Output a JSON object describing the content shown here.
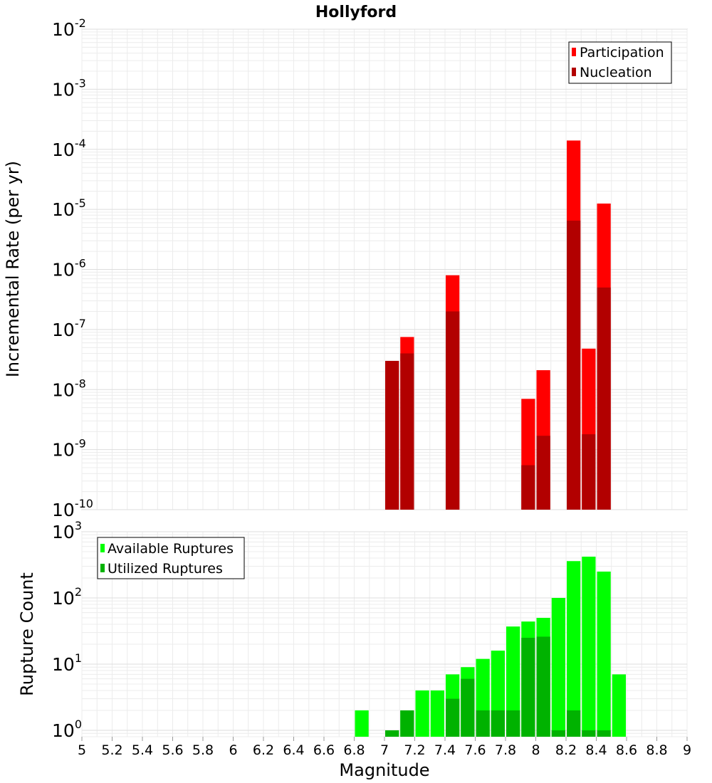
{
  "chart_data": [
    {
      "type": "bar",
      "title": "Hollyford",
      "ylabel": "Incremental Rate (per yr)",
      "xlabel": "",
      "yscale": "log",
      "xlim": [
        5,
        9
      ],
      "ylim": [
        1e-10,
        0.01
      ],
      "yticks": [
        {
          "base": "10",
          "exp": "-10"
        },
        {
          "base": "10",
          "exp": "-9"
        },
        {
          "base": "10",
          "exp": "-8"
        },
        {
          "base": "10",
          "exp": "-7"
        },
        {
          "base": "10",
          "exp": "-6"
        },
        {
          "base": "10",
          "exp": "-5"
        },
        {
          "base": "10",
          "exp": "-4"
        },
        {
          "base": "10",
          "exp": "-3"
        },
        {
          "base": "10",
          "exp": "-2"
        }
      ],
      "legend_position": "top-right",
      "series": [
        {
          "name": "Participation",
          "color": "#ff0000",
          "x": [
            7.05,
            7.15,
            7.45,
            7.95,
            8.05,
            8.25,
            8.35,
            8.45
          ],
          "values": [
            3e-08,
            7.5e-08,
            8e-07,
            7e-09,
            2.1e-08,
            0.00014,
            4.8e-08,
            1.25e-05
          ]
        },
        {
          "name": "Nucleation",
          "color": "#b20000",
          "x": [
            7.05,
            7.15,
            7.45,
            7.95,
            8.05,
            8.25,
            8.35,
            8.45
          ],
          "values": [
            3e-08,
            4e-08,
            2e-07,
            5.5e-10,
            1.7e-09,
            6.5e-06,
            1.8e-09,
            5e-07
          ]
        }
      ]
    },
    {
      "type": "bar",
      "title": "",
      "ylabel": "Rupture Count",
      "xlabel": "Magnitude",
      "yscale": "log",
      "xlim": [
        5,
        9
      ],
      "ylim": [
        0.8,
        1000
      ],
      "yticks": [
        {
          "base": "10",
          "exp": "0"
        },
        {
          "base": "10",
          "exp": "1"
        },
        {
          "base": "10",
          "exp": "2"
        },
        {
          "base": "10",
          "exp": "3"
        }
      ],
      "xticks": [
        "5",
        "5.2",
        "5.4",
        "5.6",
        "5.8",
        "6",
        "6.2",
        "6.4",
        "6.6",
        "6.8",
        "7",
        "7.2",
        "7.4",
        "7.6",
        "7.8",
        "8",
        "8.2",
        "8.4",
        "8.6",
        "8.8",
        "9"
      ],
      "legend_position": "top-left",
      "series": [
        {
          "name": "Available Ruptures",
          "color": "#00ff00",
          "x": [
            6.85,
            7.05,
            7.15,
            7.25,
            7.35,
            7.45,
            7.55,
            7.65,
            7.75,
            7.85,
            7.95,
            8.05,
            8.15,
            8.25,
            8.35,
            8.45,
            8.55
          ],
          "values": [
            2,
            1,
            2,
            4,
            4,
            7,
            9,
            12,
            16,
            37,
            44,
            50,
            100,
            360,
            420,
            250,
            7
          ]
        },
        {
          "name": "Utilized Ruptures",
          "color": "#00b200",
          "x": [
            7.05,
            7.15,
            7.45,
            7.55,
            7.65,
            7.75,
            7.85,
            7.95,
            8.05,
            8.15,
            8.25,
            8.35,
            8.45
          ],
          "values": [
            1,
            2,
            3,
            6,
            2,
            2,
            2,
            25,
            26,
            1,
            2,
            1,
            1
          ]
        }
      ]
    }
  ]
}
